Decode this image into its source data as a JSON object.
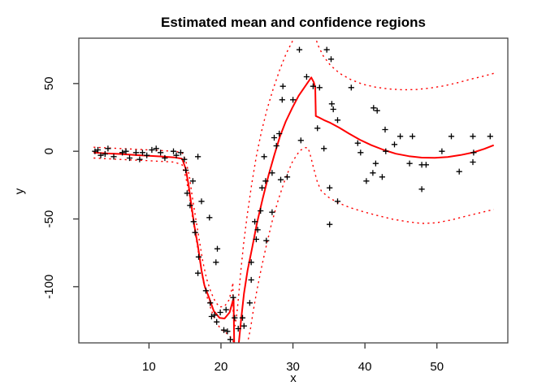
{
  "chart_data": {
    "type": "scatter",
    "title": "Estimated mean and confidence regions",
    "xlabel": "x",
    "ylabel": "y",
    "xlim": [
      0.25,
      59.85
    ],
    "ylim": [
      -141.5,
      83.5
    ],
    "xticks": [
      10,
      20,
      30,
      40,
      50
    ],
    "yticks": [
      -100,
      -50,
      0,
      50
    ],
    "grid": false,
    "legend": null,
    "colors": {
      "points": "#000000",
      "mean_line": "#ff0000",
      "confidence_line": "#ff0000",
      "axis": "#434343"
    },
    "points": [
      [
        2.5,
        0
      ],
      [
        2.9,
        1
      ],
      [
        3.3,
        -3
      ],
      [
        3.9,
        -2
      ],
      [
        4.3,
        2
      ],
      [
        5.1,
        -4
      ],
      [
        6.3,
        -1
      ],
      [
        6.8,
        0
      ],
      [
        7.3,
        -5
      ],
      [
        8.2,
        -1
      ],
      [
        8.7,
        -6
      ],
      [
        9.1,
        -1
      ],
      [
        9.7,
        -3
      ],
      [
        10.4,
        1
      ],
      [
        11,
        2
      ],
      [
        11.6,
        -1
      ],
      [
        12.2,
        -5
      ],
      [
        13.4,
        0
      ],
      [
        13.8,
        -3
      ],
      [
        14.4,
        -1
      ],
      [
        14.9,
        -6
      ],
      [
        15.1,
        -14
      ],
      [
        15.3,
        -31
      ],
      [
        15.7,
        -40
      ],
      [
        16.1,
        -22
      ],
      [
        16.2,
        -52
      ],
      [
        16.4,
        -60
      ],
      [
        16.8,
        -4
      ],
      [
        16.9,
        -78
      ],
      [
        17.3,
        -37
      ],
      [
        16.8,
        -90
      ],
      [
        17.9,
        -103
      ],
      [
        18.4,
        -49
      ],
      [
        18.5,
        -112
      ],
      [
        19.3,
        -82
      ],
      [
        19.5,
        -72
      ],
      [
        18.7,
        -122
      ],
      [
        19.1,
        -121
      ],
      [
        19.4,
        -126
      ],
      [
        19.9,
        -119
      ],
      [
        20.4,
        -132
      ],
      [
        20.7,
        -117
      ],
      [
        20.9,
        -133
      ],
      [
        21.3,
        -139
      ],
      [
        21.7,
        -108
      ],
      [
        21.9,
        -123
      ],
      [
        22.4,
        -131
      ],
      [
        23.0,
        -123
      ],
      [
        23.2,
        -129
      ],
      [
        24.0,
        -112
      ],
      [
        24.2,
        -95
      ],
      [
        24.2,
        -82
      ],
      [
        24.7,
        -52
      ],
      [
        24.9,
        -65
      ],
      [
        25.1,
        -58
      ],
      [
        25.5,
        -44
      ],
      [
        25.7,
        -27
      ],
      [
        26.2,
        -22
      ],
      [
        26.3,
        -66
      ],
      [
        27.1,
        -45
      ],
      [
        27.1,
        -16
      ],
      [
        28.3,
        -21
      ],
      [
        29.2,
        -19
      ],
      [
        26.0,
        -4
      ],
      [
        27.4,
        10
      ],
      [
        27.7,
        4
      ],
      [
        28.1,
        13
      ],
      [
        28.6,
        48
      ],
      [
        28.5,
        38
      ],
      [
        30.0,
        38
      ],
      [
        30.9,
        75
      ],
      [
        31.9,
        55
      ],
      [
        32.8,
        48
      ],
      [
        33.7,
        47
      ],
      [
        31.1,
        8
      ],
      [
        33.4,
        17
      ],
      [
        34.3,
        2
      ],
      [
        34.7,
        75
      ],
      [
        35.3,
        68
      ],
      [
        35.6,
        31
      ],
      [
        35.4,
        35
      ],
      [
        36.2,
        23
      ],
      [
        38.1,
        47
      ],
      [
        39.0,
        6
      ],
      [
        39.4,
        -1
      ],
      [
        40.2,
        -22
      ],
      [
        41.2,
        32
      ],
      [
        41.7,
        30
      ],
      [
        41.5,
        -9
      ],
      [
        41.1,
        -16
      ],
      [
        42.4,
        -19
      ],
      [
        42.8,
        16
      ],
      [
        42.9,
        0
      ],
      [
        44.1,
        5
      ],
      [
        44.9,
        11
      ],
      [
        46.6,
        11
      ],
      [
        46.2,
        -9
      ],
      [
        47.9,
        -10
      ],
      [
        48.5,
        -10
      ],
      [
        47.9,
        -28
      ],
      [
        50.7,
        0
      ],
      [
        52.0,
        11
      ],
      [
        53.1,
        -15
      ],
      [
        55.0,
        11
      ],
      [
        55.1,
        -1
      ],
      [
        55.0,
        -8
      ],
      [
        57.4,
        11
      ],
      [
        35.1,
        -27
      ],
      [
        35.1,
        -54
      ],
      [
        36.2,
        -37
      ]
    ],
    "series": [
      {
        "name": "estimated mean",
        "style": "solid",
        "color": "#ff0000",
        "path": [
          [
            2.3,
            -1
          ],
          [
            4,
            -1.5
          ],
          [
            6,
            -2
          ],
          [
            8,
            -2.7
          ],
          [
            10,
            -3.3
          ],
          [
            12,
            -4
          ],
          [
            13.5,
            -4.5
          ],
          [
            14.6,
            -5.5
          ],
          [
            15.1,
            -13
          ],
          [
            15.5,
            -25
          ],
          [
            15.9,
            -40
          ],
          [
            16.3,
            -55
          ],
          [
            16.8,
            -70
          ],
          [
            17.3,
            -88
          ],
          [
            17.7,
            -99
          ],
          [
            18.4,
            -109
          ],
          [
            19.0,
            -118
          ],
          [
            19.8,
            -123
          ],
          [
            20.5,
            -123.5
          ],
          [
            21.2,
            -119
          ],
          [
            21.7,
            -109.5
          ],
          [
            21.75,
            -109
          ],
          [
            21.85,
            -150
          ],
          [
            22.1,
            -158
          ],
          [
            22.45,
            -143
          ],
          [
            22.8,
            -124
          ],
          [
            23.2,
            -105
          ],
          [
            23.7,
            -88
          ],
          [
            24.3,
            -72
          ],
          [
            25,
            -53
          ],
          [
            25.8,
            -35
          ],
          [
            26.6,
            -18
          ],
          [
            27.4,
            -3
          ],
          [
            28.2,
            11
          ],
          [
            29,
            22
          ],
          [
            29.9,
            32
          ],
          [
            30.8,
            41
          ],
          [
            31.7,
            48
          ],
          [
            32.55,
            54.5
          ],
          [
            32.9,
            51
          ],
          [
            33.1,
            47
          ],
          [
            33.18,
            26
          ],
          [
            33.6,
            25
          ],
          [
            34.3,
            23
          ],
          [
            35.2,
            21
          ],
          [
            36.4,
            17.5
          ],
          [
            37.8,
            13
          ],
          [
            39.3,
            8.5
          ],
          [
            40.9,
            4.5
          ],
          [
            42.6,
            1
          ],
          [
            44.3,
            -1.8
          ],
          [
            46.1,
            -3.6
          ],
          [
            47.9,
            -4.7
          ],
          [
            49.7,
            -4.8
          ],
          [
            51.5,
            -4.2
          ],
          [
            53.3,
            -2.8
          ],
          [
            55.1,
            -0.8
          ],
          [
            56.6,
            1.8
          ],
          [
            57.9,
            4.5
          ]
        ]
      },
      {
        "name": "upper confidence region",
        "style": "dotted",
        "color": "#ff0000",
        "path": [
          [
            2.3,
            3
          ],
          [
            6,
            2
          ],
          [
            10,
            1
          ],
          [
            13.5,
            0
          ],
          [
            14.6,
            -1
          ],
          [
            15.1,
            -7
          ],
          [
            15.6,
            -18
          ],
          [
            16,
            -33
          ],
          [
            16.5,
            -50
          ],
          [
            17,
            -66
          ],
          [
            17.5,
            -82
          ],
          [
            18,
            -94
          ],
          [
            18.6,
            -104
          ],
          [
            19.2,
            -111
          ],
          [
            19.8,
            -115
          ],
          [
            20.5,
            -114.5
          ],
          [
            21.1,
            -110
          ],
          [
            21.5,
            -102
          ],
          [
            21.65,
            -97
          ],
          [
            21.7,
            -120
          ],
          [
            21.95,
            -129
          ],
          [
            22.2,
            -120
          ],
          [
            22.45,
            -107
          ],
          [
            22.75,
            -89
          ],
          [
            23.15,
            -68
          ],
          [
            23.65,
            -47
          ],
          [
            24.25,
            -25
          ],
          [
            24.9,
            -4
          ],
          [
            25.6,
            14
          ],
          [
            26.4,
            31
          ],
          [
            27.25,
            46
          ],
          [
            28.15,
            60
          ],
          [
            29.05,
            72
          ],
          [
            29.9,
            81
          ],
          [
            30.4,
            87
          ],
          [
            31.2,
            100
          ],
          [
            32.3,
            100
          ],
          [
            33.05,
            85
          ],
          [
            33.5,
            78
          ],
          [
            34.2,
            70.5
          ],
          [
            35.2,
            63.5
          ],
          [
            36.5,
            57.5
          ],
          [
            38,
            53
          ],
          [
            39.7,
            49.5
          ],
          [
            41.5,
            47.3
          ],
          [
            43.3,
            46
          ],
          [
            45.2,
            45.4
          ],
          [
            47.1,
            45.6
          ],
          [
            49,
            46.6
          ],
          [
            51,
            48.3
          ],
          [
            53,
            50.8
          ],
          [
            55,
            53.6
          ],
          [
            56.5,
            55.5
          ],
          [
            57.9,
            57.5
          ]
        ]
      },
      {
        "name": "lower confidence region",
        "style": "dotted",
        "color": "#ff0000",
        "path": [
          [
            2.3,
            -5
          ],
          [
            6,
            -6
          ],
          [
            10,
            -7
          ],
          [
            13.5,
            -8
          ],
          [
            14.6,
            -10
          ],
          [
            15.1,
            -19
          ],
          [
            15.6,
            -32
          ],
          [
            16,
            -47
          ],
          [
            16.5,
            -63
          ],
          [
            17,
            -79
          ],
          [
            17.5,
            -95
          ],
          [
            18.1,
            -108
          ],
          [
            18.7,
            -118
          ],
          [
            19.3,
            -126
          ],
          [
            20,
            -131.5
          ],
          [
            20.7,
            -134
          ],
          [
            21.3,
            -137
          ],
          [
            21.9,
            -142
          ],
          [
            22.4,
            -152
          ],
          [
            23.2,
            -152
          ],
          [
            23.75,
            -140
          ],
          [
            24.1,
            -131
          ],
          [
            24.45,
            -119
          ],
          [
            24.95,
            -104
          ],
          [
            25.55,
            -88
          ],
          [
            26.25,
            -71
          ],
          [
            27.05,
            -53
          ],
          [
            27.95,
            -36
          ],
          [
            28.95,
            -20
          ],
          [
            29.95,
            -7.5
          ],
          [
            30.95,
            0.5
          ],
          [
            31.75,
            2.7
          ],
          [
            32.1,
            2.5
          ],
          [
            32.4,
            -2.5
          ],
          [
            32.9,
            -13
          ],
          [
            33.4,
            -23
          ],
          [
            33.95,
            -29.5
          ],
          [
            34.95,
            -34
          ],
          [
            36.25,
            -38
          ],
          [
            37.85,
            -41.5
          ],
          [
            39.85,
            -44.8
          ],
          [
            41.85,
            -47.6
          ],
          [
            43.85,
            -50.2
          ],
          [
            45.85,
            -52
          ],
          [
            47.85,
            -53.3
          ],
          [
            49.85,
            -52.9
          ],
          [
            51.85,
            -50.9
          ],
          [
            53.85,
            -48.2
          ],
          [
            55.85,
            -45.6
          ],
          [
            57.9,
            -43
          ]
        ]
      }
    ]
  }
}
